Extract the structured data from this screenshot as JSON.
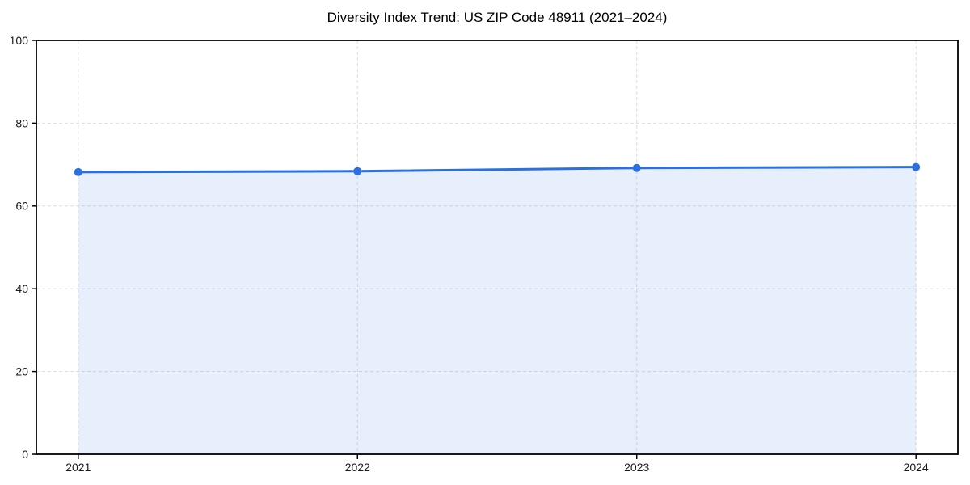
{
  "chart_data": {
    "type": "area",
    "title": "Diversity Index Trend: US ZIP Code 48911 (2021–2024)",
    "categories": [
      "2021",
      "2022",
      "2023",
      "2024"
    ],
    "x": [
      2021,
      2022,
      2023,
      2024
    ],
    "series": [
      {
        "name": "Diversity Index",
        "values": [
          68.2,
          68.4,
          69.2,
          69.4
        ]
      }
    ],
    "xlabel": "",
    "ylabel": "",
    "ylim": [
      0,
      100
    ],
    "yticks": [
      0,
      20,
      40,
      60,
      80,
      100
    ],
    "x_margin": 0.05,
    "grid": true,
    "grid_style": "dashed",
    "legend_position": "none",
    "colors": {
      "line": "#2a70e0",
      "marker": "#2a70e0",
      "fill": "rgba(42,112,224,0.11)",
      "grid": "#dcdcdc",
      "axis": "#000000",
      "tick_label": "#1a1a1a",
      "title": "#000000",
      "background": "#ffffff"
    }
  }
}
